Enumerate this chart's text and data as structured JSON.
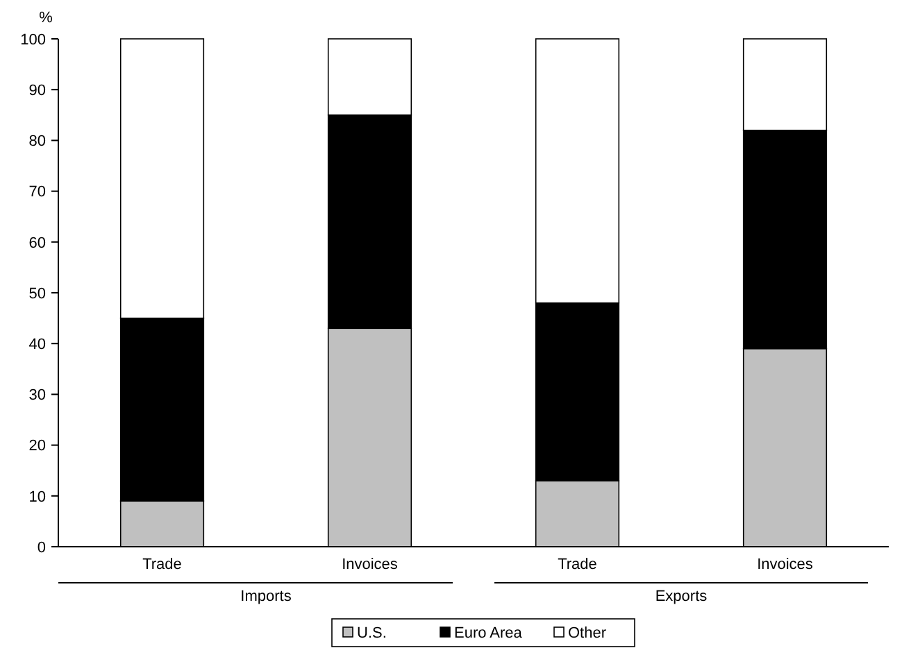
{
  "chart_data": {
    "type": "bar",
    "stacked": true,
    "ylabel": "%",
    "categories": [
      "Trade",
      "Invoices",
      "Trade",
      "Invoices"
    ],
    "series": [
      {
        "name": "U.S.",
        "color": "#c0c0c0",
        "values": [
          9,
          43,
          13,
          39
        ]
      },
      {
        "name": "Euro Area",
        "color": "#000000",
        "values": [
          36,
          42,
          35,
          43
        ]
      },
      {
        "name": "Other",
        "color": "#ffffff",
        "values": [
          55,
          15,
          52,
          18
        ]
      }
    ],
    "ylim": [
      0,
      100
    ],
    "yticks": [
      0,
      10,
      20,
      30,
      40,
      50,
      60,
      70,
      80,
      90,
      100
    ],
    "annotations": [
      "Imports",
      "Exports"
    ],
    "legend": "bottom",
    "grid": false
  }
}
